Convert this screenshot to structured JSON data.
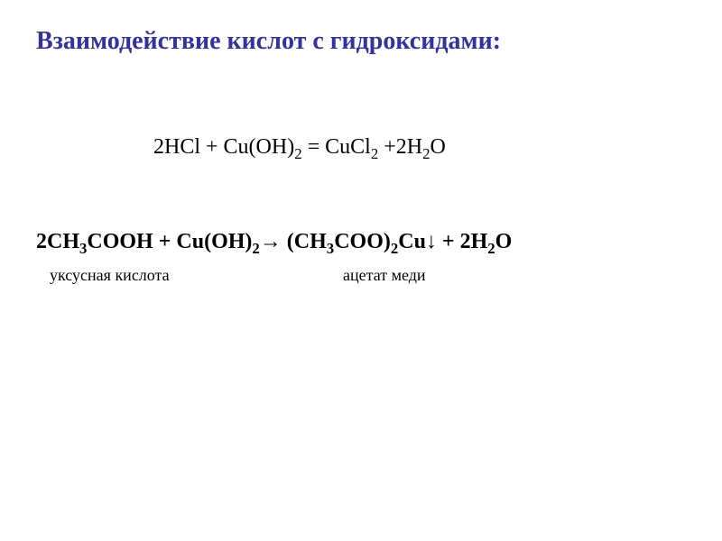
{
  "title": "Взаимодействие кислот с гидроксидами:",
  "eq1": {
    "coef1": "2",
    "hcl": "HCl + Cu(OH)",
    "oh_sub": "2",
    "eq": " = CuCl",
    "cl_sub": "2",
    "plus": " +2H",
    "h_sub": "2",
    "o": "O"
  },
  "eq2": {
    "coef1": "2CH",
    "ch_sub1": "3",
    "cooh": "COOH + Cu(OH)",
    "oh_sub": "2",
    "arrow": "→ (CH",
    "ch_sub2": "3",
    "coo": "COO)",
    "coo_sub": "2",
    "cu": "Cu↓ + 2H",
    "h_sub": "2",
    "o": "O"
  },
  "label_left": "уксусная кислота",
  "label_right": "ацетат меди",
  "colors": {
    "title": "#333399",
    "text": "#000000",
    "background": "#ffffff"
  },
  "fonts": {
    "title_size": 28,
    "eq_size": 24,
    "label_size": 18,
    "family": "Times New Roman"
  }
}
